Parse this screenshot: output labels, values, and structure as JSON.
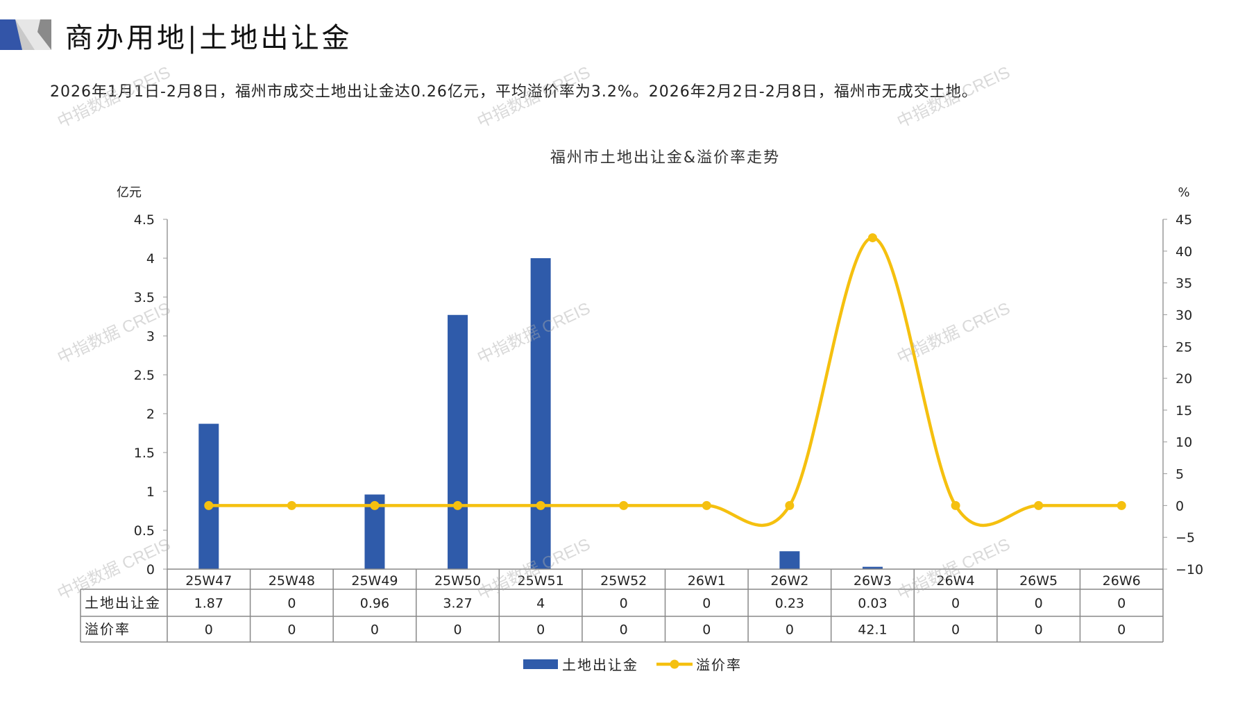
{
  "header": {
    "title": "商办用地|土地出让金"
  },
  "summary": "2026年1月1日-2月8日，福州市成交土地出让金达0.26亿元，平均溢价率为3.2%。2026年2月2日-2月8日，福州市无成交土地。",
  "watermark": "中指数据 CREIS",
  "chart_data": {
    "type": "bar+line",
    "title": "福州市土地出让金&溢价率走势",
    "categories": [
      "25W47",
      "25W48",
      "25W49",
      "25W50",
      "25W51",
      "25W52",
      "26W1",
      "26W2",
      "26W3",
      "26W4",
      "26W5",
      "26W6"
    ],
    "series": [
      {
        "name": "土地出让金",
        "type": "bar",
        "axis": "left",
        "color": "#2F5BAA",
        "values": [
          1.87,
          0,
          0.96,
          3.27,
          4,
          0,
          0,
          0.23,
          0.03,
          0,
          0,
          0
        ]
      },
      {
        "name": "溢价率",
        "type": "line",
        "smooth": true,
        "axis": "right",
        "color": "#F5C00F",
        "values": [
          0,
          0,
          0,
          0,
          0,
          0,
          0,
          0,
          42.1,
          0,
          0,
          0
        ]
      }
    ],
    "left_axis": {
      "label": "亿元",
      "range": [
        0,
        4.5
      ],
      "ticks": [
        "0",
        "0.5",
        "1",
        "1.5",
        "2",
        "2.5",
        "3",
        "3.5",
        "4",
        "4.5"
      ]
    },
    "right_axis": {
      "label": "%",
      "range": [
        -10,
        45
      ],
      "ticks": [
        "−10",
        "−5",
        "0",
        "5",
        "10",
        "15",
        "20",
        "25",
        "30",
        "35",
        "40",
        "45"
      ]
    },
    "data_table": {
      "rows": [
        {
          "label": "土地出让金",
          "values": [
            "1.87",
            "0",
            "0.96",
            "3.27",
            "4",
            "0",
            "0",
            "0.23",
            "0.03",
            "0",
            "0",
            "0"
          ]
        },
        {
          "label": "溢价率",
          "values": [
            "0",
            "0",
            "0",
            "0",
            "0",
            "0",
            "0",
            "0",
            "42.1",
            "0",
            "0",
            "0"
          ]
        }
      ]
    },
    "legend": {
      "placement": "bottom"
    },
    "grid": false
  }
}
